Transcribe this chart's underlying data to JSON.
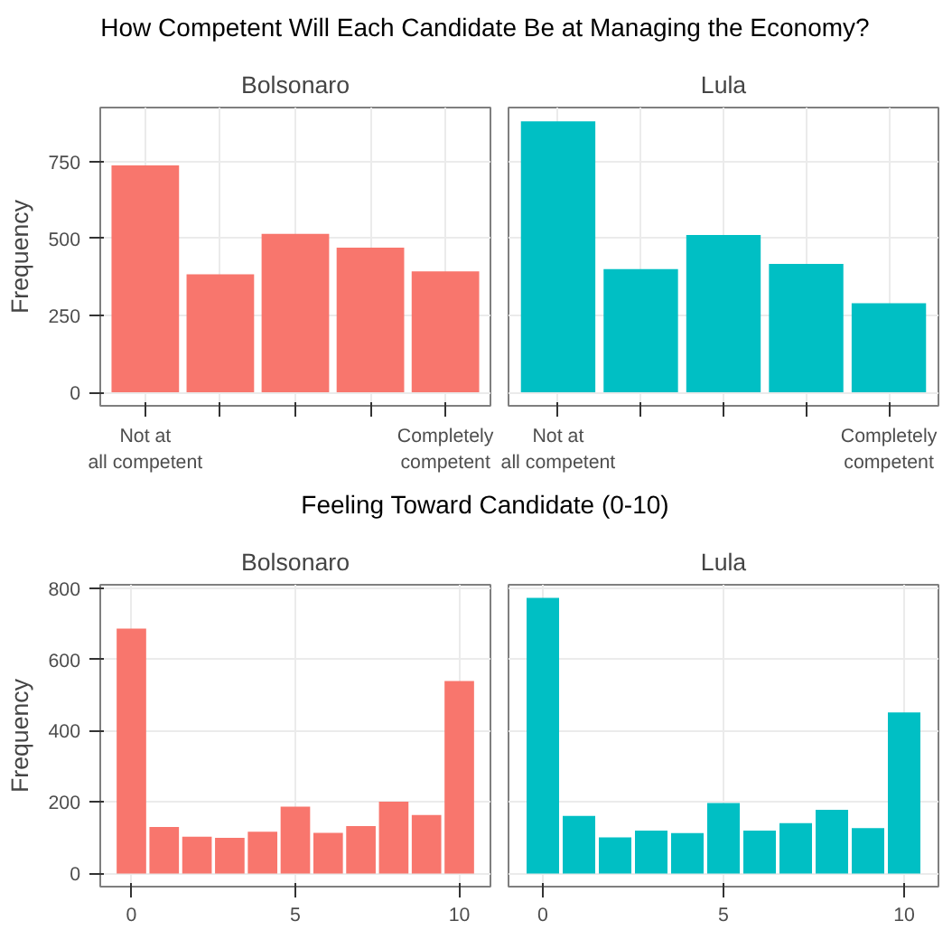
{
  "chart_data": [
    {
      "type": "bar",
      "title": "How Competent Will Each Candidate Be at Managing the Economy?",
      "subtitle": "Bolsonaro",
      "ylabel": "Frequency",
      "categories": [
        "Not at all competent",
        null,
        null,
        null,
        "Completely competent"
      ],
      "series": [
        {
          "color": "#f8766d",
          "values": [
            737,
            383,
            515,
            470,
            393
          ]
        }
      ],
      "ylim": [
        -44,
        925
      ],
      "yticks": [
        0,
        250,
        500,
        750
      ],
      "grid": true
    },
    {
      "type": "bar",
      "subtitle": "Lula",
      "categories": [
        "Not at all competent",
        null,
        null,
        null,
        "Completely competent"
      ],
      "series": [
        {
          "color": "#00bfc4",
          "values": [
            880,
            400,
            511,
            417,
            289
          ]
        }
      ],
      "ylim": [
        -44,
        925
      ],
      "yticks": [
        0,
        250,
        500,
        750
      ],
      "grid": true,
      "tick_labels": "x"
    },
    {
      "type": "bar",
      "title": "Feeling Toward Candidate (0-10)",
      "subtitle": "Bolsonaro",
      "ylabel": "Frequency",
      "x": [
        0,
        1,
        2,
        3,
        4,
        5,
        6,
        7,
        8,
        9,
        10
      ],
      "series": [
        {
          "color": "#f8766d",
          "values": [
            686,
            130,
            103,
            100,
            117,
            187,
            114,
            133,
            201,
            164,
            539
          ]
        }
      ],
      "xlim": [
        -0.95,
        10.95
      ],
      "xticks": [
        0,
        5,
        10
      ],
      "ylim": [
        -37,
        809
      ],
      "yticks": [
        0,
        200,
        400,
        600,
        800
      ],
      "grid": true
    },
    {
      "type": "bar",
      "subtitle": "Lula",
      "x": [
        0,
        1,
        2,
        3,
        4,
        5,
        6,
        7,
        8,
        9,
        10
      ],
      "series": [
        {
          "color": "#00bfc4",
          "values": [
            772,
            161,
            101,
            120,
            113,
            197,
            120,
            141,
            178,
            127,
            451
          ]
        }
      ],
      "xlim": [
        -0.95,
        10.95
      ],
      "xticks": [
        0,
        5,
        10
      ],
      "ylim": [
        -37,
        809
      ],
      "yticks": [
        0,
        200,
        400,
        600,
        800
      ],
      "grid": true,
      "tick_labels": "x"
    }
  ]
}
